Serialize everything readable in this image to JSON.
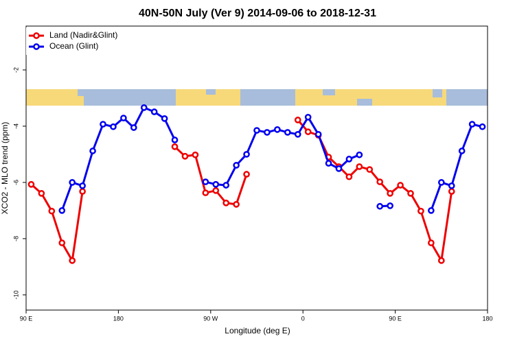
{
  "chart_data": {
    "type": "line",
    "title": "40N-50N July (Ver 9)   2014-09-06 to 2018-12-31",
    "xlabel": "Longitude (deg E)",
    "ylabel": "XCO2 - MLO trend (ppm)",
    "x": [
      95,
      105,
      115,
      125,
      135,
      145,
      155,
      165,
      175,
      185,
      195,
      205,
      215,
      225,
      235,
      245,
      255,
      265,
      275,
      285,
      295,
      305,
      315,
      325,
      335,
      345,
      355,
      365,
      375,
      385,
      395,
      405,
      415,
      425,
      435,
      445,
      455,
      465,
      475,
      485,
      495,
      505,
      515,
      525,
      535
    ],
    "series": [
      {
        "name": "Land (Nadir&Glint)",
        "color": "#ee0000",
        "values": [
          -6.07,
          -6.39,
          -7.02,
          -8.15,
          -8.78,
          -6.32,
          null,
          null,
          null,
          null,
          null,
          null,
          null,
          null,
          -4.73,
          -5.07,
          -5.02,
          -6.37,
          -6.29,
          -6.73,
          -6.78,
          -5.71,
          null,
          null,
          null,
          null,
          -3.78,
          -4.2,
          -4.32,
          -5.1,
          -5.44,
          -5.8,
          -5.44,
          -5.54,
          -5.98,
          -6.39,
          -6.1,
          -6.39,
          -7.02,
          -8.15,
          -8.78,
          -6.32,
          null,
          null,
          null
        ]
      },
      {
        "name": "Ocean (Glint)",
        "color": "#0000ee",
        "values": [
          null,
          null,
          null,
          -7.0,
          -6.0,
          -6.12,
          -4.88,
          -3.93,
          -4.02,
          -3.71,
          -4.05,
          -3.34,
          -3.49,
          -3.73,
          -4.49,
          null,
          null,
          -5.98,
          -6.07,
          -6.1,
          -5.39,
          -5.0,
          -4.15,
          -4.22,
          -4.12,
          -4.22,
          -4.29,
          -3.68,
          -4.29,
          -5.32,
          -5.51,
          -5.17,
          -5.02,
          null,
          -6.85,
          -6.83,
          null,
          null,
          null,
          -7.0,
          -6.0,
          -6.12,
          -4.88,
          -3.93,
          -4.02
        ]
      }
    ],
    "xlim": [
      90,
      540
    ],
    "xticks": [
      {
        "value": 90,
        "label": "90 E"
      },
      {
        "value": 180,
        "label": "180"
      },
      {
        "value": 270,
        "label": "90 W"
      },
      {
        "value": 360,
        "label": "0"
      },
      {
        "value": 450,
        "label": "90 E"
      },
      {
        "value": 540,
        "label": "180"
      }
    ],
    "ylim": [
      -10.54,
      -0.44
    ],
    "yticks": [
      -2,
      -4,
      -6,
      -8,
      -10
    ],
    "legend": "top-left"
  }
}
